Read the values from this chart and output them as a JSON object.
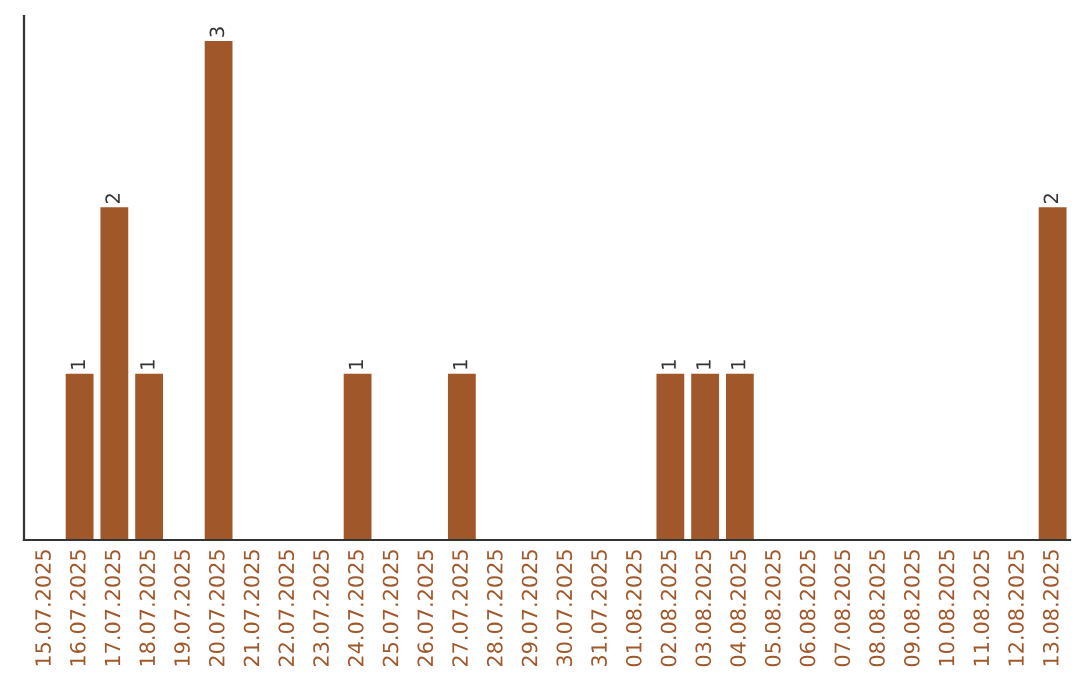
{
  "chart_data": {
    "type": "bar",
    "categories": [
      "15.07.2025",
      "16.07.2025",
      "17.07.2025",
      "18.07.2025",
      "19.07.2025",
      "20.07.2025",
      "21.07.2025",
      "22.07.2025",
      "23.07.2025",
      "24.07.2025",
      "25.07.2025",
      "26.07.2025",
      "27.07.2025",
      "28.07.2025",
      "29.07.2025",
      "30.07.2025",
      "31.07.2025",
      "01.08.2025",
      "02.08.2025",
      "03.08.2025",
      "04.08.2025",
      "05.08.2025",
      "06.08.2025",
      "07.08.2025",
      "08.08.2025",
      "09.08.2025",
      "10.08.2025",
      "11.08.2025",
      "12.08.2025",
      "13.08.2025"
    ],
    "values": [
      0,
      1,
      2,
      1,
      0,
      3,
      0,
      0,
      0,
      1,
      0,
      0,
      1,
      0,
      0,
      0,
      0,
      0,
      1,
      1,
      1,
      0,
      0,
      0,
      0,
      0,
      0,
      0,
      0,
      2
    ],
    "value_labels": [
      null,
      "1",
      "2",
      "1",
      null,
      "3",
      null,
      null,
      null,
      "1",
      null,
      null,
      "1",
      null,
      null,
      null,
      null,
      null,
      "1",
      "1",
      "1",
      null,
      null,
      null,
      null,
      null,
      null,
      null,
      null,
      "2"
    ],
    "color": "#a0572a",
    "ylim": [
      0,
      3.15
    ],
    "tick_labels": "x",
    "grid": false,
    "legend": false
  }
}
